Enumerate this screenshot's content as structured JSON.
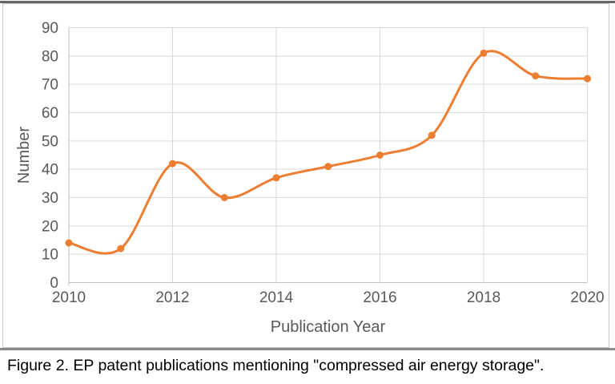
{
  "figure": {
    "caption": "Figure 2. EP patent publications mentioning \"compressed air energy storage\"."
  },
  "chart_data": {
    "type": "line",
    "title": "",
    "xlabel": "Publication Year",
    "ylabel": "Number",
    "x": [
      2010,
      2011,
      2012,
      2013,
      2014,
      2015,
      2016,
      2017,
      2018,
      2019,
      2020
    ],
    "series": [
      {
        "name": "EP patent publications",
        "values": [
          14,
          12,
          42,
          30,
          37,
          41,
          45,
          52,
          81,
          73,
          72
        ]
      }
    ],
    "xticks": [
      2010,
      2012,
      2014,
      2016,
      2018,
      2020
    ],
    "ylim": [
      0,
      90
    ],
    "ytick_step": 10,
    "grid": true,
    "legend": "none",
    "smooth": true,
    "marker": "circle",
    "line_color": "#ED7D31",
    "grid_color": "#D9D9D9",
    "axis_line_color": "#BFBFBF",
    "tick_color": "#595959"
  }
}
